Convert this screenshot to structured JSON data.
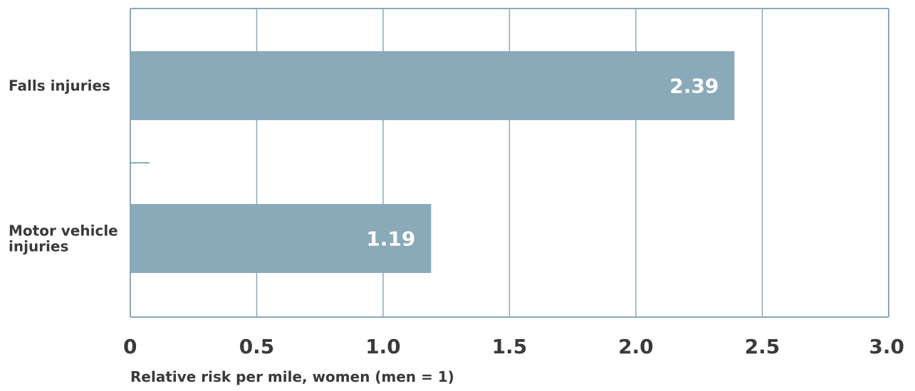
{
  "chart_data": {
    "type": "bar",
    "orientation": "horizontal",
    "categories": [
      "Falls injuries",
      "Motor vehicle injuries"
    ],
    "values": [
      2.39,
      1.19
    ],
    "value_labels": [
      "2.39",
      "1.19"
    ],
    "xlabel": "Relative risk per mile, women (men = 1)",
    "xlim": [
      0,
      3.0
    ],
    "xticks": [
      "0",
      "0.5",
      "1.0",
      "1.5",
      "2.0",
      "2.5",
      "3.0"
    ],
    "grid": true,
    "colors": {
      "bar": "#8aa9b9",
      "grid": "#8aa9b9",
      "text": "#3a3a3a",
      "value_text": "#ffffff"
    }
  }
}
